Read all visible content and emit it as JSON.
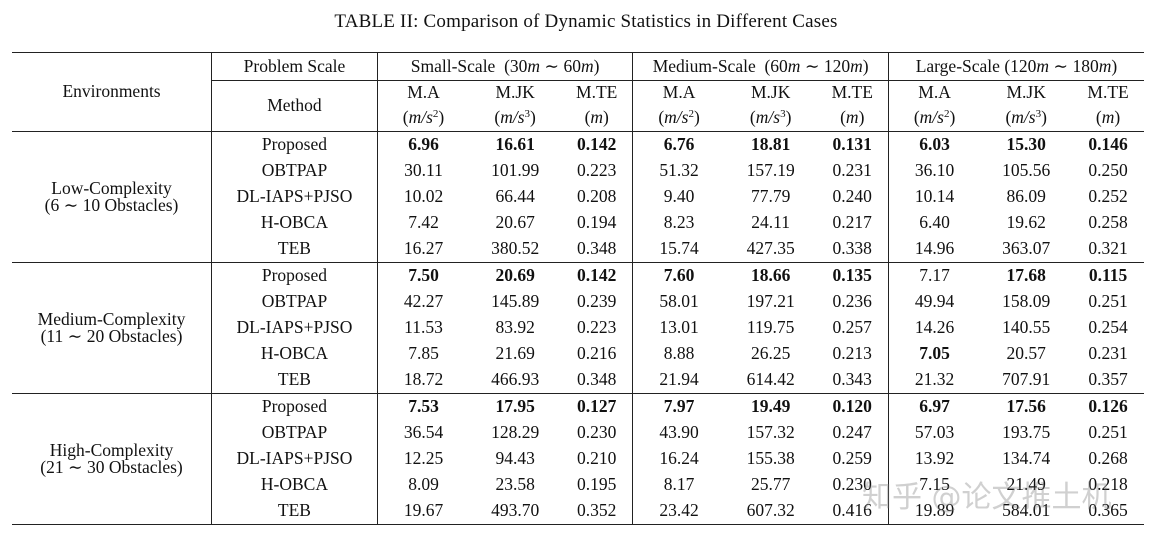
{
  "caption": "TABLE II:  Comparison of Dynamic Statistics in Different Cases",
  "header": {
    "environments": "Environments",
    "problem_scale": "Problem Scale",
    "method": "Method",
    "scales": [
      {
        "name": "Small-Scale",
        "range_start": "(30",
        "range_end": "60"
      },
      {
        "name": "Medium-Scale",
        "range_start": "(60",
        "range_end": "120"
      },
      {
        "name": "Large-Scale",
        "range_start": "(120",
        "range_end": "180"
      }
    ],
    "metrics": [
      {
        "name": "M.A",
        "unit_base": "m/s",
        "unit_exp": "2"
      },
      {
        "name": "M.JK",
        "unit_base": "m/s",
        "unit_exp": "3"
      },
      {
        "name": "M.TE",
        "unit_base": "m",
        "unit_exp": ""
      }
    ],
    "range_unit": "m",
    "range_sep": "∼"
  },
  "environments": [
    {
      "name": "Low-Complexity",
      "detail": "(6 ∼ 10 Obstacles)",
      "rows": [
        {
          "method": "Proposed",
          "values": [
            "6.96",
            "16.61",
            "0.142",
            "6.76",
            "18.81",
            "0.131",
            "6.03",
            "15.30",
            "0.146"
          ],
          "bold": [
            true,
            true,
            true,
            true,
            true,
            true,
            true,
            true,
            true
          ]
        },
        {
          "method": "OBTPAP",
          "values": [
            "30.11",
            "101.99",
            "0.223",
            "51.32",
            "157.19",
            "0.231",
            "36.10",
            "105.56",
            "0.250"
          ],
          "bold": [
            false,
            false,
            false,
            false,
            false,
            false,
            false,
            false,
            false
          ]
        },
        {
          "method": "DL-IAPS+PJSO",
          "values": [
            "10.02",
            "66.44",
            "0.208",
            "9.40",
            "77.79",
            "0.240",
            "10.14",
            "86.09",
            "0.252"
          ],
          "bold": [
            false,
            false,
            false,
            false,
            false,
            false,
            false,
            false,
            false
          ]
        },
        {
          "method": "H-OBCA",
          "values": [
            "7.42",
            "20.67",
            "0.194",
            "8.23",
            "24.11",
            "0.217",
            "6.40",
            "19.62",
            "0.258"
          ],
          "bold": [
            false,
            false,
            false,
            false,
            false,
            false,
            false,
            false,
            false
          ]
        },
        {
          "method": "TEB",
          "values": [
            "16.27",
            "380.52",
            "0.348",
            "15.74",
            "427.35",
            "0.338",
            "14.96",
            "363.07",
            "0.321"
          ],
          "bold": [
            false,
            false,
            false,
            false,
            false,
            false,
            false,
            false,
            false
          ]
        }
      ]
    },
    {
      "name": "Medium-Complexity",
      "detail": "(11 ∼ 20 Obstacles)",
      "rows": [
        {
          "method": "Proposed",
          "values": [
            "7.50",
            "20.69",
            "0.142",
            "7.60",
            "18.66",
            "0.135",
            "7.17",
            "17.68",
            "0.115"
          ],
          "bold": [
            true,
            true,
            true,
            true,
            true,
            true,
            false,
            true,
            true
          ]
        },
        {
          "method": "OBTPAP",
          "values": [
            "42.27",
            "145.89",
            "0.239",
            "58.01",
            "197.21",
            "0.236",
            "49.94",
            "158.09",
            "0.251"
          ],
          "bold": [
            false,
            false,
            false,
            false,
            false,
            false,
            false,
            false,
            false
          ]
        },
        {
          "method": "DL-IAPS+PJSO",
          "values": [
            "11.53",
            "83.92",
            "0.223",
            "13.01",
            "119.75",
            "0.257",
            "14.26",
            "140.55",
            "0.254"
          ],
          "bold": [
            false,
            false,
            false,
            false,
            false,
            false,
            false,
            false,
            false
          ]
        },
        {
          "method": "H-OBCA",
          "values": [
            "7.85",
            "21.69",
            "0.216",
            "8.88",
            "26.25",
            "0.213",
            "7.05",
            "20.57",
            "0.231"
          ],
          "bold": [
            false,
            false,
            false,
            false,
            false,
            false,
            true,
            false,
            false
          ]
        },
        {
          "method": "TEB",
          "values": [
            "18.72",
            "466.93",
            "0.348",
            "21.94",
            "614.42",
            "0.343",
            "21.32",
            "707.91",
            "0.357"
          ],
          "bold": [
            false,
            false,
            false,
            false,
            false,
            false,
            false,
            false,
            false
          ]
        }
      ]
    },
    {
      "name": "High-Complexity",
      "detail": "(21 ∼ 30 Obstacles)",
      "rows": [
        {
          "method": "Proposed",
          "values": [
            "7.53",
            "17.95",
            "0.127",
            "7.97",
            "19.49",
            "0.120",
            "6.97",
            "17.56",
            "0.126"
          ],
          "bold": [
            true,
            true,
            true,
            true,
            true,
            true,
            true,
            true,
            true
          ]
        },
        {
          "method": "OBTPAP",
          "values": [
            "36.54",
            "128.29",
            "0.230",
            "43.90",
            "157.32",
            "0.247",
            "57.03",
            "193.75",
            "0.251"
          ],
          "bold": [
            false,
            false,
            false,
            false,
            false,
            false,
            false,
            false,
            false
          ]
        },
        {
          "method": "DL-IAPS+PJSO",
          "values": [
            "12.25",
            "94.43",
            "0.210",
            "16.24",
            "155.38",
            "0.259",
            "13.92",
            "134.74",
            "0.268"
          ],
          "bold": [
            false,
            false,
            false,
            false,
            false,
            false,
            false,
            false,
            false
          ]
        },
        {
          "method": "H-OBCA",
          "values": [
            "8.09",
            "23.58",
            "0.195",
            "8.17",
            "25.77",
            "0.230",
            "7.15",
            "21.49",
            "0.218"
          ],
          "bold": [
            false,
            false,
            false,
            false,
            false,
            false,
            false,
            false,
            false
          ]
        },
        {
          "method": "TEB",
          "values": [
            "19.67",
            "493.70",
            "0.352",
            "23.42",
            "607.32",
            "0.416",
            "19.89",
            "584.01",
            "0.365"
          ],
          "bold": [
            false,
            false,
            false,
            false,
            false,
            false,
            false,
            false,
            false
          ]
        }
      ]
    }
  ],
  "watermark": "知乎 @论文推土机"
}
